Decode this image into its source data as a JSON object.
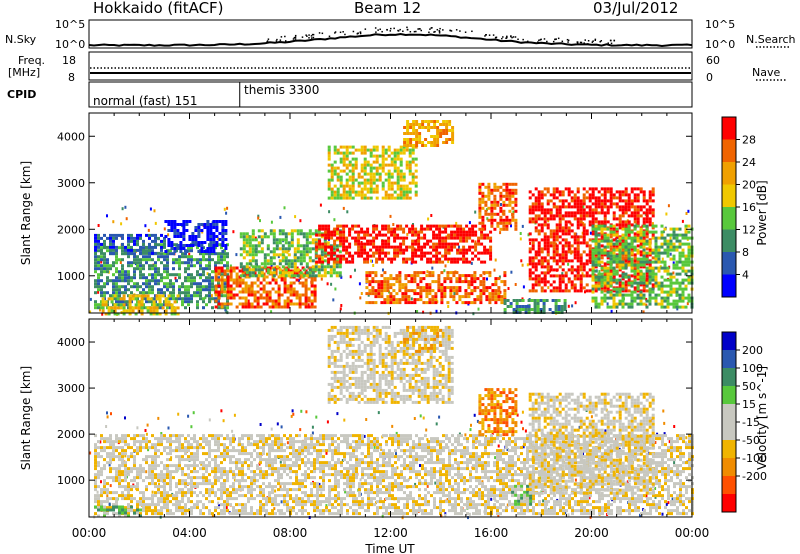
{
  "header": {
    "title": "Hokkaido (fitACF)",
    "beam": "Beam 12",
    "date": "03/Jul/2012"
  },
  "panels": {
    "nsky": {
      "label": "N.Sky",
      "tick_top": "10^5",
      "tick_bottom": "10^0",
      "right_label": "N.Search",
      "right_tick_top": "10^5",
      "right_tick_bottom": "10^0"
    },
    "freq": {
      "label_line1": "Freq.",
      "label_line2": "[MHz]",
      "tick_top": "18",
      "tick_bottom": "8",
      "right_label": "Nave",
      "right_tick_top": "60",
      "right_tick_bottom": "0"
    },
    "cpid": {
      "label": "CPID",
      "segments": [
        {
          "name": "normal (fast) 151",
          "start_hour": 0,
          "end_hour": 6
        },
        {
          "name": "themis 3300",
          "start_hour": 6,
          "end_hour": 24
        }
      ]
    }
  },
  "colors": {
    "power": [
      "#0000ff",
      "#2a58b0",
      "#3c8c64",
      "#58c83c",
      "#f0c800",
      "#f0a000",
      "#f06400",
      "#ff0000"
    ],
    "velocity": [
      "#ff0000",
      "#ff5000",
      "#f08c00",
      "#f0b400",
      "#c8c8c0",
      "#c8c8c0",
      "#58c83c",
      "#3c8c64",
      "#2a58b0",
      "#0000c8"
    ]
  },
  "chart_data": [
    {
      "type": "heatmap",
      "name": "power",
      "xlabel": "",
      "ylabel": "Slant Range [km]",
      "xlim": [
        0,
        24
      ],
      "ylim": [
        200,
        4500
      ],
      "y_ticks": [
        "1000",
        "2000",
        "3000",
        "4000"
      ],
      "colorbar_label": "Power [dB]",
      "colorbar_ticks": [
        "4",
        "8",
        "12",
        "16",
        "20",
        "24",
        "28"
      ],
      "patches": [
        {
          "t0": 0.2,
          "t1": 5.5,
          "r0": 300,
          "r1": 1700,
          "level": 2
        },
        {
          "t0": 0.2,
          "t1": 3.0,
          "r0": 1500,
          "r1": 1900,
          "level": 1
        },
        {
          "t0": 0.5,
          "t1": 3.5,
          "r0": 200,
          "r1": 600,
          "level": 4
        },
        {
          "t0": 3.0,
          "t1": 5.5,
          "r0": 1500,
          "r1": 2200,
          "level": 0
        },
        {
          "t0": 5.0,
          "t1": 9.0,
          "r0": 300,
          "r1": 1200,
          "level": 6
        },
        {
          "t0": 6.0,
          "t1": 10.0,
          "r0": 1000,
          "r1": 2000,
          "level": 3
        },
        {
          "t0": 9.0,
          "t1": 16.0,
          "r0": 1300,
          "r1": 2100,
          "level": 7
        },
        {
          "t0": 9.5,
          "t1": 13.0,
          "r0": 2700,
          "r1": 3800,
          "level": 4
        },
        {
          "t0": 12.5,
          "t1": 14.5,
          "r0": 3800,
          "r1": 4350,
          "level": 5
        },
        {
          "t0": 11.0,
          "t1": 16.5,
          "r0": 400,
          "r1": 1100,
          "level": 6
        },
        {
          "t0": 15.5,
          "t1": 17.0,
          "r0": 2000,
          "r1": 3000,
          "level": 6
        },
        {
          "t0": 17.5,
          "t1": 22.5,
          "r0": 700,
          "r1": 2900,
          "level": 7
        },
        {
          "t0": 20.0,
          "t1": 24.0,
          "r0": 300,
          "r1": 2100,
          "level": 3
        },
        {
          "t0": 16.5,
          "t1": 19.0,
          "r0": 200,
          "r1": 500,
          "level": 2
        }
      ]
    },
    {
      "type": "heatmap",
      "name": "velocity",
      "xlabel": "Time UT",
      "ylabel": "Slant Range [km]",
      "xlim": [
        0,
        24
      ],
      "ylim": [
        200,
        4500
      ],
      "x_ticks": [
        "00:00",
        "04:00",
        "08:00",
        "12:00",
        "16:00",
        "20:00",
        "00:00"
      ],
      "y_ticks": [
        "1000",
        "2000",
        "3000",
        "4000"
      ],
      "colorbar_label": "Velocity [m s^-1]",
      "colorbar_ticks": [
        "200",
        "100",
        "50",
        "15",
        "-15",
        "-50",
        "-100",
        "-200"
      ],
      "patches": [
        {
          "t0": 0.2,
          "t1": 24.0,
          "r0": 300,
          "r1": 2000,
          "level": 4
        },
        {
          "t0": 9.5,
          "t1": 14.5,
          "r0": 2700,
          "r1": 4350,
          "level": 4
        },
        {
          "t0": 12.5,
          "t1": 14.0,
          "r0": 3800,
          "r1": 4350,
          "level": 3
        },
        {
          "t0": 15.5,
          "t1": 17.0,
          "r0": 2000,
          "r1": 3000,
          "level": 2
        },
        {
          "t0": 16.8,
          "t1": 17.6,
          "r0": 500,
          "r1": 900,
          "level": 6
        },
        {
          "t0": 0.2,
          "t1": 2.0,
          "r0": 200,
          "r1": 450,
          "level": 6
        },
        {
          "t0": 17.5,
          "t1": 22.5,
          "r0": 700,
          "r1": 2900,
          "level": 4
        }
      ]
    }
  ]
}
